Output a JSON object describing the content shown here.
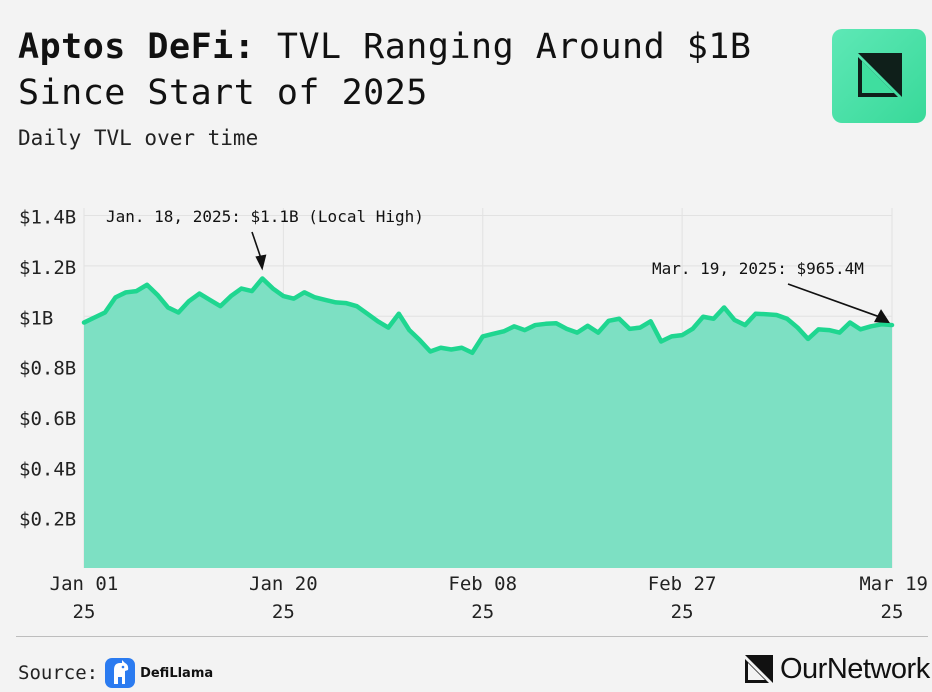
{
  "header": {
    "title_bold": "Aptos DeFi:",
    "title_rest": " TVL Ranging Around $1B Since Start of 2025",
    "subtitle": "Daily TVL over time"
  },
  "footer": {
    "source_label": "Source:",
    "source_name": "DefiLlama",
    "brand": "OurNetwork"
  },
  "watermark": "OurNetwork",
  "colors": {
    "area_fill": "#7de0c3",
    "line": "#1fd690",
    "grid": "#e2e2e2",
    "background": "#f3f3f3",
    "logo": "#4ee3aa"
  },
  "icons": {
    "logo": "ournetwork-logo-icon",
    "source": "defillama-llama-icon"
  },
  "chart_data": {
    "type": "area",
    "title": "",
    "xlabel": "",
    "ylabel": "",
    "x_ticks": [
      {
        "line1": "Jan 01",
        "line2": "25",
        "day": 0
      },
      {
        "line1": "Jan 20",
        "line2": "25",
        "day": 19
      },
      {
        "line1": "Feb 08",
        "line2": "25",
        "day": 38
      },
      {
        "line1": "Feb 27",
        "line2": "25",
        "day": 57
      },
      {
        "line1": "Mar 19",
        "line2": "25",
        "day": 77
      }
    ],
    "y_ticks": [
      {
        "label": "$0.2B",
        "value": 0.2
      },
      {
        "label": "$0.4B",
        "value": 0.4
      },
      {
        "label": "$0.6B",
        "value": 0.6
      },
      {
        "label": "$0.8B",
        "value": 0.8
      },
      {
        "label": "$1B",
        "value": 1.0
      },
      {
        "label": "$1.2B",
        "value": 1.2
      },
      {
        "label": "$1.4B",
        "value": 1.4
      }
    ],
    "ylim": [
      0,
      1.43
    ],
    "grid": true,
    "series": [
      {
        "values": [
          0.975,
          0.995,
          1.015,
          1.075,
          1.095,
          1.1,
          1.125,
          1.085,
          1.035,
          1.015,
          1.06,
          1.09,
          1.065,
          1.04,
          1.08,
          1.11,
          1.1,
          1.15,
          1.11,
          1.08,
          1.07,
          1.095,
          1.075,
          1.065,
          1.055,
          1.052,
          1.04,
          1.01,
          0.98,
          0.955,
          1.01,
          0.945,
          0.905,
          0.86,
          0.875,
          0.868,
          0.875,
          0.855,
          0.92,
          0.93,
          0.94,
          0.96,
          0.945,
          0.965,
          0.97,
          0.972,
          0.95,
          0.935,
          0.962,
          0.935,
          0.982,
          0.99,
          0.95,
          0.955,
          0.98,
          0.9,
          0.92,
          0.925,
          0.95,
          0.998,
          0.99,
          1.035,
          0.985,
          0.965,
          1.01,
          1.008,
          1.005,
          0.99,
          0.955,
          0.91,
          0.948,
          0.945,
          0.935,
          0.975,
          0.948,
          0.96,
          0.968,
          0.965
        ]
      }
    ],
    "annotations": [
      {
        "text": "Jan. 18, 2025: $1.1B (Local High)",
        "day": 17
      },
      {
        "text": "Mar. 19, 2025: $965.4M",
        "day": 77
      }
    ]
  }
}
